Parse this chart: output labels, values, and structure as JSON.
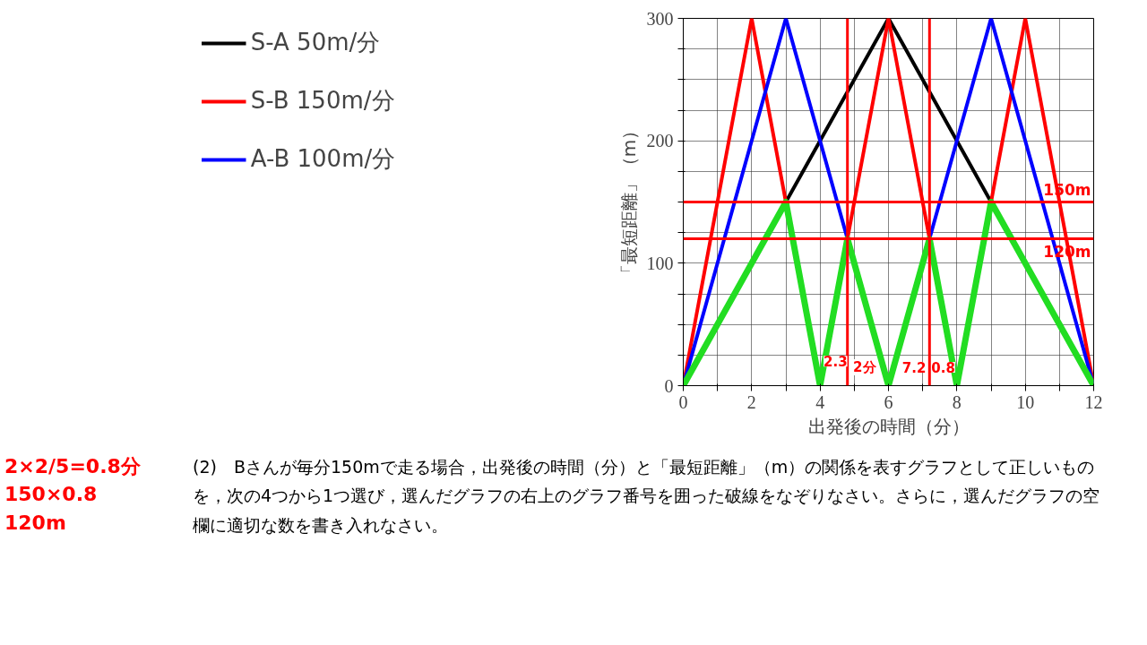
{
  "chart_data": {
    "type": "line",
    "xlabel": "出発後の時間（分）",
    "ylabel": "「最短距離」（m）",
    "xlim": [
      0,
      12
    ],
    "ylim": [
      0,
      300
    ],
    "xticks": [
      0,
      {
        "value": 1,
        "label": null
      },
      2,
      {
        "value": 3,
        "label": null
      },
      4,
      {
        "value": 5,
        "label": null
      },
      6,
      {
        "value": 7,
        "label": null
      },
      8,
      {
        "value": 9,
        "label": null
      },
      10,
      {
        "value": 11,
        "label": null
      },
      12
    ],
    "yticks": [
      0,
      {
        "value": 25,
        "label": null
      },
      {
        "value": 50,
        "label": null
      },
      {
        "value": 75,
        "label": null
      },
      100,
      {
        "value": 125,
        "label": null
      },
      {
        "value": 150,
        "label": null
      },
      {
        "value": 175,
        "label": null
      },
      200,
      {
        "value": 225,
        "label": null
      },
      {
        "value": 250,
        "label": null
      },
      {
        "value": 275,
        "label": null
      },
      300
    ],
    "grid": true,
    "legend": "left",
    "marker": "none",
    "line_style": "solid",
    "series": [
      {
        "name": "S-A 50m/分",
        "color": "#000000",
        "x": [
          0,
          6,
          12
        ],
        "values": [
          0,
          300,
          0
        ]
      },
      {
        "name": "S-B 150m/分",
        "color": "#ff0000",
        "x": [
          0,
          2,
          4,
          6,
          8,
          10,
          12
        ],
        "values": [
          0,
          300,
          0,
          300,
          0,
          300,
          0
        ]
      },
      {
        "name": "A-B 100m/分",
        "color": "#0000ff",
        "x": [
          0,
          3,
          6,
          9,
          12
        ],
        "values": [
          0,
          300,
          0,
          300,
          0
        ]
      },
      {
        "color": "#22dd22",
        "x": [
          0,
          3,
          4,
          4.8,
          6,
          7.2,
          8,
          9,
          12
        ],
        "values": [
          0,
          150,
          0,
          120,
          0,
          120,
          0,
          150,
          0
        ]
      }
    ],
    "ref_lines": [
      {
        "axis": "y",
        "value": 150,
        "label": "150m",
        "color": "#ff0000"
      },
      {
        "axis": "y",
        "value": 120,
        "label": "120m",
        "color": "#ff0000"
      },
      {
        "axis": "x",
        "value": 4.8,
        "color": "#ff0000"
      },
      {
        "axis": "x",
        "value": 7.2,
        "color": "#ff0000"
      }
    ],
    "annotations": [
      {
        "text": "2.3",
        "x": 4.45,
        "y": 20
      },
      {
        "text": "2分",
        "x": 5.3,
        "y": 15
      },
      {
        "text": "7.2",
        "x": 6.75,
        "y": 15
      },
      {
        "text": "0.8",
        "x": 7.6,
        "y": 15
      },
      "2×2/5=0.8分",
      "150×0.8",
      "120m",
      "(2)　Bさんが毎分150mで走る場合，出発後の時間（分）と「最短距離」（m）の関係を表すグラフとして正しいものを，次の4つから1つ選び，選んだグラフの右上のグラフ番号を囲った破線をなぞりなさい。さらに，選んだグラフの空欄に適切な数を書き入れなさい。"
    ]
  }
}
